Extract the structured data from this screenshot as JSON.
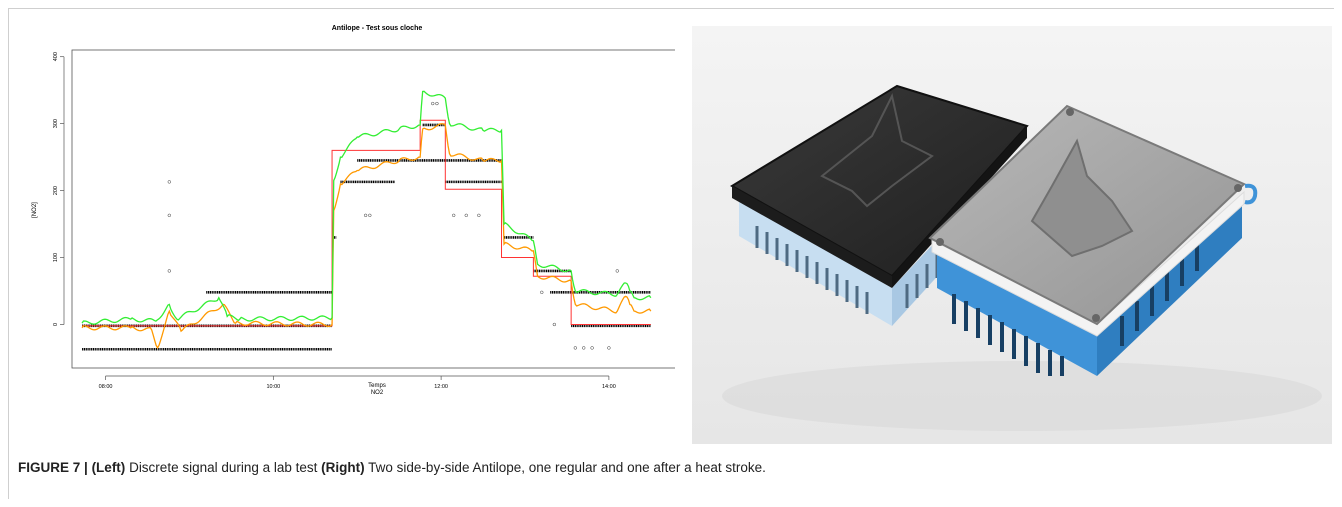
{
  "figure": {
    "caption_label": "FIGURE 7 |",
    "caption_left_tag": "(Left)",
    "caption_left_text": " Discrete signal during a lab test ",
    "caption_right_tag": "(Right)",
    "caption_right_text": " Two side-by-side Antilope, one regular and one after a heat stroke."
  },
  "photo": {
    "description_icon": "photo-two-3d-printed-sensor-boxes",
    "left_box": {
      "lid_color": "#2b2b2b",
      "body_color": "#b9d6ee"
    },
    "right_box": {
      "lid_color": "#a9a9a9",
      "body_color": "#3f93d8"
    }
  },
  "chart_data": {
    "type": "line",
    "title": "Antilope - Test sous cloche",
    "xlabel": "Temps",
    "xlabel2": "NO2",
    "ylabel": "[NO2]",
    "x_ticks": [
      "08:00",
      "10:00",
      "12:00",
      "14:00"
    ],
    "x_tick_hours": [
      8,
      10,
      12,
      14
    ],
    "xlim": [
      7.6,
      14.8
    ],
    "ylim": [
      -65,
      410
    ],
    "y_ticks": [
      0,
      100,
      200,
      300,
      400
    ],
    "grid": false,
    "series": [
      {
        "color": "#ff3333",
        "x": [
          7.72,
          10.7,
          10.7,
          11.75,
          11.75,
          12.05,
          12.05,
          12.72,
          12.72,
          13.1,
          13.1,
          13.55,
          13.55,
          14.5
        ],
        "y": [
          -2,
          -2,
          260,
          260,
          305,
          305,
          202,
          202,
          100,
          100,
          72,
          72,
          0,
          0
        ]
      },
      {
        "color": "#ff9900",
        "x": [
          7.72,
          8.3,
          8.55,
          8.62,
          8.76,
          8.9,
          9.4,
          9.55,
          10.7,
          10.72,
          10.8,
          11.0,
          11.5,
          11.75,
          11.78,
          12.05,
          12.1,
          12.5,
          12.72,
          12.75,
          13.1,
          13.15,
          13.55,
          13.6,
          14.1,
          14.2,
          14.25,
          14.3,
          14.5
        ],
        "y": [
          -5,
          -5,
          -8,
          -35,
          20,
          -10,
          30,
          2,
          0,
          170,
          210,
          230,
          245,
          250,
          292,
          298,
          255,
          245,
          245,
          120,
          110,
          72,
          65,
          30,
          20,
          42,
          30,
          20,
          20
        ]
      },
      {
        "color": "#33ee33",
        "x": [
          7.72,
          8.3,
          8.6,
          8.76,
          8.85,
          9.35,
          9.45,
          9.6,
          10.7,
          10.72,
          10.8,
          11.0,
          11.5,
          11.75,
          11.78,
          12.05,
          12.1,
          12.5,
          12.72,
          12.75,
          13.1,
          13.15,
          13.55,
          13.6,
          14.1,
          14.2,
          14.25,
          14.3,
          14.5
        ],
        "y": [
          2,
          8,
          5,
          30,
          8,
          40,
          12,
          8,
          10,
          215,
          250,
          280,
          292,
          298,
          348,
          338,
          300,
          290,
          290,
          150,
          125,
          90,
          80,
          50,
          45,
          62,
          50,
          40,
          40
        ]
      }
    ],
    "levels": [
      {
        "y": -37,
        "x": [
          7.72,
          10.7
        ]
      },
      {
        "y": -2,
        "x": [
          7.72,
          10.7
        ]
      },
      {
        "y": 48,
        "x": [
          9.2,
          10.7
        ]
      },
      {
        "y": 80,
        "x": [
          10.7,
          10.72
        ]
      },
      {
        "y": 130,
        "x": [
          10.72,
          10.75
        ]
      },
      {
        "y": 213,
        "x": [
          10.8,
          11.45
        ]
      },
      {
        "y": 245,
        "x": [
          11.0,
          12.72
        ]
      },
      {
        "y": 298,
        "x": [
          11.78,
          12.05
        ]
      },
      {
        "y": 213,
        "x": [
          12.05,
          12.72
        ]
      },
      {
        "y": 130,
        "x": [
          12.75,
          13.1
        ]
      },
      {
        "y": 80,
        "x": [
          13.1,
          13.55
        ]
      },
      {
        "y": 48,
        "x": [
          13.3,
          14.5
        ]
      },
      {
        "y": -2,
        "x": [
          13.55,
          14.5
        ]
      }
    ],
    "outliers": [
      {
        "x": 8.76,
        "y": 213
      },
      {
        "x": 8.76,
        "y": 163
      },
      {
        "x": 8.76,
        "y": 80
      },
      {
        "x": 11.9,
        "y": 330
      },
      {
        "x": 11.95,
        "y": 330
      },
      {
        "x": 12.15,
        "y": 163
      },
      {
        "x": 12.3,
        "y": 163
      },
      {
        "x": 12.45,
        "y": 163
      },
      {
        "x": 11.1,
        "y": 163
      },
      {
        "x": 11.15,
        "y": 163
      },
      {
        "x": 13.6,
        "y": -35
      },
      {
        "x": 13.7,
        "y": -35
      },
      {
        "x": 13.8,
        "y": -35
      },
      {
        "x": 14.0,
        "y": -35
      },
      {
        "x": 14.1,
        "y": 80
      },
      {
        "x": 13.2,
        "y": 48
      },
      {
        "x": 13.35,
        "y": 0
      }
    ]
  }
}
